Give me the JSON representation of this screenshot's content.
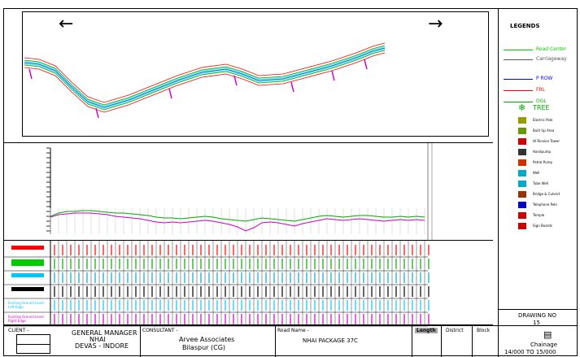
{
  "plan": {
    "arrow_left": "←",
    "arrow_right": "→",
    "road_colors": [
      "#00c8c8",
      "#ff0000",
      "#00aa00",
      "#0000ff"
    ]
  },
  "legend": {
    "title": "LEGENDS",
    "lines": [
      {
        "label": "Road Center",
        "color": "#00cc00"
      },
      {
        "label": "Carriageway",
        "color": "#555555"
      },
      {
        "label": "P ROW",
        "color": "#0000ff"
      },
      {
        "label": "FRL",
        "color": "#ff0000"
      },
      {
        "label": "OGL",
        "color": "#00aa00"
      }
    ],
    "tree_label": "TREE",
    "symbols": [
      {
        "label": "Electric Pole",
        "icon": "electric-pole-icon",
        "color": "#999900"
      },
      {
        "label": "Built Up Area",
        "icon": "built-up-area-icon",
        "color": "#669900"
      },
      {
        "label": "Hi-Tension Tower",
        "icon": "tension-tower-icon",
        "color": "#cc0000"
      },
      {
        "label": "Handpump",
        "icon": "handpump-icon",
        "color": "#333333"
      },
      {
        "label": "Petrol Pump",
        "icon": "petrol-pump-icon",
        "color": "#cc3300"
      },
      {
        "label": "Well",
        "icon": "well-icon",
        "color": "#00aacc"
      },
      {
        "label": "Tube Well",
        "icon": "tube-well-icon",
        "color": "#00aacc"
      },
      {
        "label": "Bridge & Culvert",
        "icon": "bridge-icon",
        "color": "#993300"
      },
      {
        "label": "Telephone Pole",
        "icon": "telephone-pole-icon",
        "color": "#0000cc"
      },
      {
        "label": "Temple",
        "icon": "temple-icon",
        "color": "#cc0000"
      },
      {
        "label": "Sign Boards",
        "icon": "sign-board-icon",
        "color": "#cc0000"
      }
    ]
  },
  "profile_colors": {
    "frl": "#cc00cc",
    "ogl": "#00aa00",
    "grid": "#cccccc"
  },
  "data_rows": [
    {
      "legend_color": "#ff0000",
      "row_color": "#ff0000"
    },
    {
      "legend_color": "#00cc00",
      "row_color": "#00aa00"
    },
    {
      "legend_color": "#00c8ff",
      "row_color": "#00aacc"
    },
    {
      "legend_color": "#000000",
      "row_color": "#000000"
    },
    {
      "label": "Existing Ground Level Left Edge",
      "row_color": "#00c8ff"
    },
    {
      "label": "Existing Ground Level Right Edge",
      "row_color": "#cc00cc"
    }
  ],
  "drawing": {
    "label": "DRAWING NO",
    "number": "15"
  },
  "title_block": {
    "client_label": "CLIENT -",
    "client_line1": "GENERAL MANAGER",
    "client_line2": "NHAI",
    "client_line3": "DEVAS - INDORE",
    "consultant_label": "CONSULTANT -",
    "consultant_line1": "Arvee Associates",
    "consultant_line2": "Bilaspur (CG)",
    "road_label": "Road Name -",
    "road_name": "NHAI PACKAGE 37C",
    "length_label": "Length",
    "district_label": "District",
    "block_label": "Block",
    "chainage_label": "Chainage",
    "chainage_value": "14/000 TO 15/000"
  }
}
